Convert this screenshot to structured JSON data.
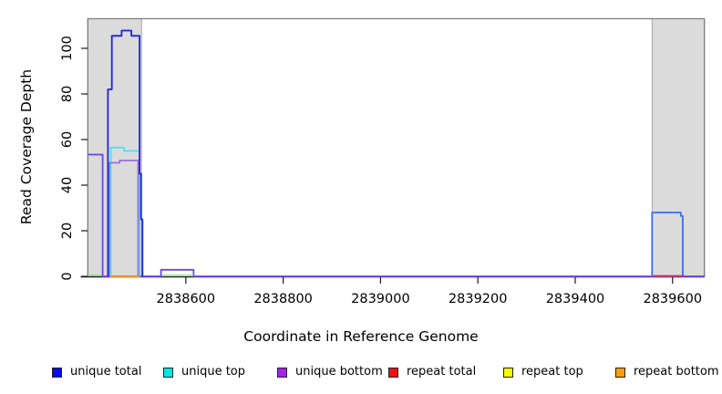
{
  "figure": {
    "x_axis_label": "Coordinate in Reference Genome",
    "y_axis_label": "Read Coverage Depth"
  },
  "legend": {
    "position": "bottom",
    "items": [
      {
        "label": "unique total",
        "color": "#0a0af0"
      },
      {
        "label": "unique top",
        "color": "#00e8e8"
      },
      {
        "label": "unique bottom",
        "color": "#a023ef"
      },
      {
        "label": "repeat total",
        "color": "#ee1111"
      },
      {
        "label": "repeat top",
        "color": "#f8f800"
      },
      {
        "label": "repeat bottom",
        "color": "#ffa10a"
      }
    ]
  },
  "chart_data": {
    "type": "line",
    "title": "",
    "xlabel": "Coordinate in Reference Genome",
    "ylabel": "Read Coverage Depth",
    "xlim": [
      2838398,
      2839666
    ],
    "ylim": [
      0,
      113.2
    ],
    "grid": false,
    "x_ticks": [
      2838600,
      2838800,
      2839000,
      2839200,
      2839400,
      2839600
    ],
    "y_ticks": [
      0,
      20,
      40,
      60,
      80,
      100
    ],
    "axis_color": "#1a1a1a",
    "box_color": "#7d7d7d",
    "shaded_regions": [
      {
        "label": "left repeat region",
        "x0": 2838398,
        "x1": 2838509,
        "color": "#dbdbdb",
        "border": "#a6a6a6"
      },
      {
        "label": "right repeat region",
        "x0": 2839558,
        "x1": 2839666,
        "color": "#dbdbdb",
        "border": "#a6a6a6"
      }
    ],
    "series": [
      {
        "name": "unique overlap baseline",
        "color": "#6a46ec",
        "width": 1.8,
        "points": [
          [
            2838398,
            53.4
          ],
          [
            2838429,
            53.4
          ],
          [
            2838429,
            0
          ],
          [
            2838549,
            0
          ],
          [
            2838549,
            2.9
          ],
          [
            2838616,
            2.9
          ],
          [
            2838616,
            0
          ],
          [
            2839666,
            0
          ]
        ]
      },
      {
        "name": "baseline overlap green left",
        "color": "#8fe08f",
        "width": 1.6,
        "points": [
          [
            2838402,
            0.5
          ],
          [
            2838428,
            0.5
          ]
        ]
      },
      {
        "name": "baseline overlap green mid",
        "color": "#8fe08f",
        "width": 1.6,
        "points": [
          [
            2838551,
            0.5
          ],
          [
            2838615,
            0.5
          ]
        ]
      },
      {
        "name": "repeat bottom",
        "color": "#ff9718",
        "width": 1.8,
        "points": [
          [
            2838444,
            -0.1
          ],
          [
            2838506,
            -0.1
          ]
        ]
      },
      {
        "name": "repeat total",
        "color": "#e93030",
        "width": 1.8,
        "points": [
          [
            2839558,
            0.2
          ],
          [
            2839624,
            0.2
          ]
        ]
      },
      {
        "name": "unique top",
        "color": "#4ae4f2",
        "width": 1.8,
        "points": [
          [
            2838446,
            0
          ],
          [
            2838446,
            56.5
          ],
          [
            2838473,
            56.5
          ],
          [
            2838473,
            55
          ],
          [
            2838505,
            55
          ],
          [
            2838505,
            0
          ]
        ]
      },
      {
        "name": "unique bottom",
        "color": "#9b6fdd",
        "width": 1.8,
        "points": [
          [
            2838443,
            0
          ],
          [
            2838443,
            49.8
          ],
          [
            2838464,
            49.8
          ],
          [
            2838464,
            50.8
          ],
          [
            2838502,
            50.8
          ],
          [
            2838502,
            0
          ]
        ]
      },
      {
        "name": "unique total left peak",
        "color": "#2222dd",
        "width": 1.8,
        "points": [
          [
            2838440,
            0
          ],
          [
            2838440,
            82
          ],
          [
            2838448,
            82
          ],
          [
            2838448,
            105.5
          ],
          [
            2838468,
            105.5
          ],
          [
            2838468,
            107.8
          ],
          [
            2838488,
            107.8
          ],
          [
            2838488,
            105.5
          ],
          [
            2838505,
            105.5
          ],
          [
            2838505,
            45
          ],
          [
            2838508,
            45
          ],
          [
            2838508,
            25
          ],
          [
            2838511,
            25
          ],
          [
            2838511,
            0
          ]
        ]
      },
      {
        "name": "unique total right plateau",
        "color": "#3b6cf4",
        "width": 1.8,
        "points": [
          [
            2839558,
            0
          ],
          [
            2839558,
            28
          ],
          [
            2839617,
            28
          ],
          [
            2839617,
            26.5
          ],
          [
            2839621,
            26.5
          ],
          [
            2839621,
            0
          ]
        ]
      }
    ]
  }
}
